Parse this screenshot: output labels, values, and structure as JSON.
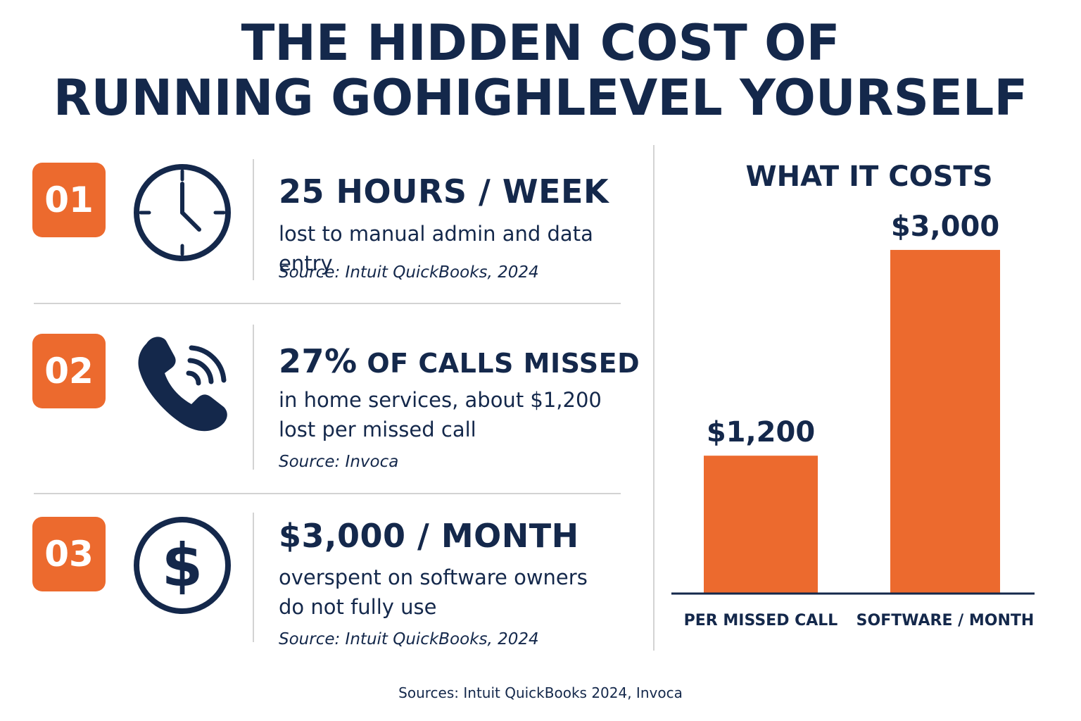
{
  "title": {
    "line1": "THE HIDDEN COST OF",
    "line2": "RUNNING GOHIGHLEVEL YOURSELF"
  },
  "items": [
    {
      "number": "01",
      "icon": "clock-icon",
      "stat": "25 HOURS / WEEK",
      "description": "lost to manual admin and data entry",
      "source": "Source: Intuit QuickBooks, 2024"
    },
    {
      "number": "02",
      "icon": "phone-icon",
      "stat_big": "27%",
      "stat_small": " OF CALLS MISSED",
      "description_line1": "in home services, about $1,200",
      "description_line2": "lost per missed call",
      "source": "Source: Invoca"
    },
    {
      "number": "03",
      "icon": "dollar-icon",
      "stat": "$3,000 / MONTH",
      "description_line1": "overspent on software owners",
      "description_line2": "do not fully use",
      "source": "Source: Intuit QuickBooks, 2024"
    }
  ],
  "chart_data": {
    "type": "bar",
    "title": "WHAT IT COSTS",
    "categories": [
      "PER MISSED CALL",
      "SOFTWARE / MONTH"
    ],
    "values": [
      1200,
      3000
    ],
    "data_labels": [
      "$1,200",
      "$3,000"
    ],
    "ylim": [
      0,
      3400
    ],
    "grid": false,
    "bar_color": "#ec6a2e"
  },
  "footer": "Sources: Intuit QuickBooks 2024, Invoca",
  "colors": {
    "navy": "#14284b",
    "orange": "#ec6a2e",
    "separator": "#d3d3d3"
  }
}
